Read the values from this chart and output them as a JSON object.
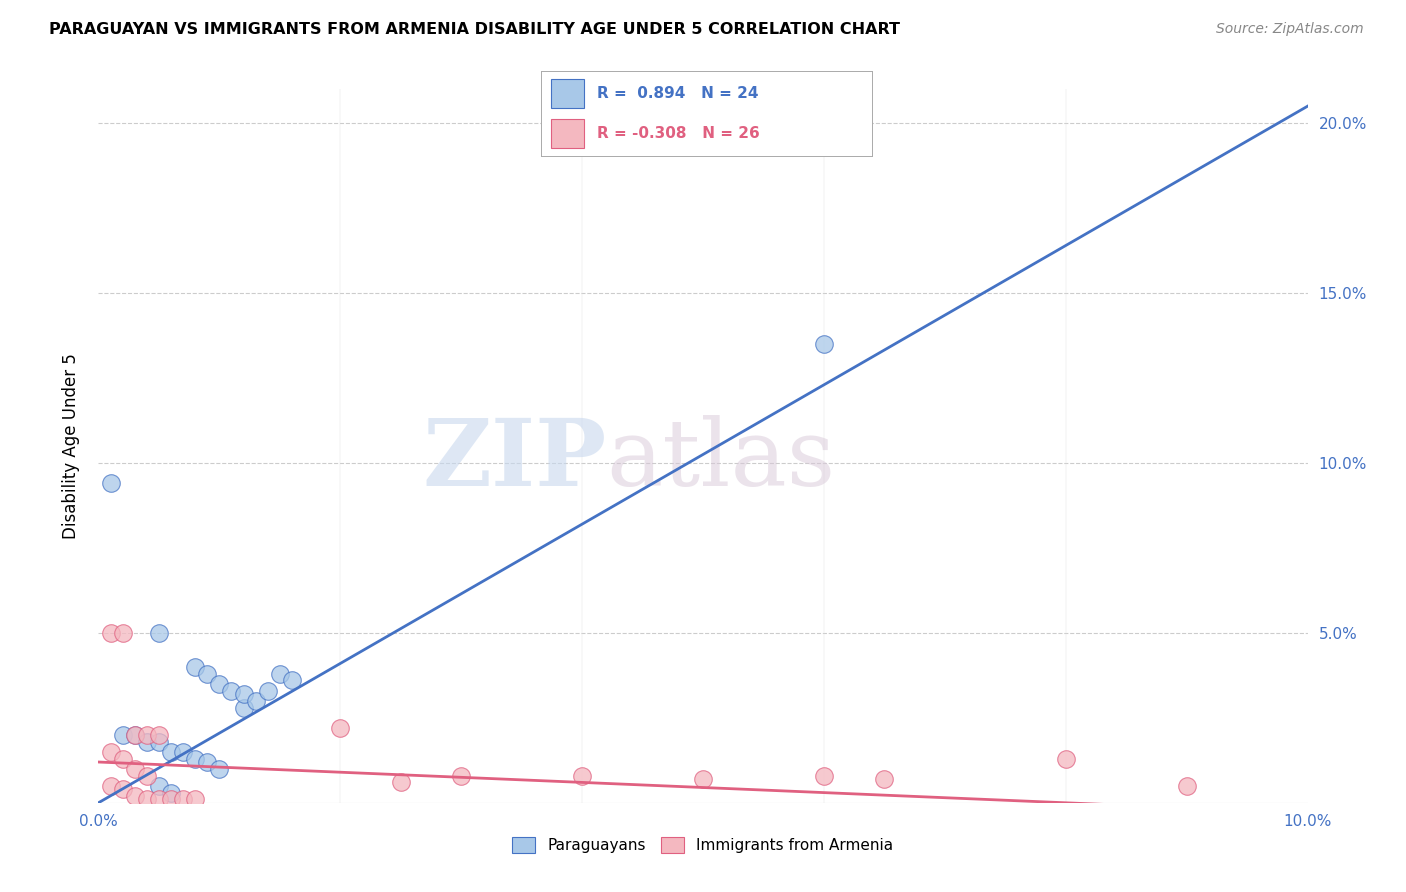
{
  "title": "PARAGUAYAN VS IMMIGRANTS FROM ARMENIA DISABILITY AGE UNDER 5 CORRELATION CHART",
  "source": "Source: ZipAtlas.com",
  "ylabel": "Disability Age Under 5",
  "watermark_zip": "ZIP",
  "watermark_atlas": "atlas",
  "xlim": [
    0.0,
    0.1
  ],
  "ylim": [
    0.0,
    0.21
  ],
  "yticks": [
    0.0,
    0.05,
    0.1,
    0.15,
    0.2
  ],
  "ytick_labels_right": [
    "0.0%",
    "5.0%",
    "10.0%",
    "15.0%",
    "20.0%"
  ],
  "xtick_left_label": "0.0%",
  "xtick_right_label": "10.0%",
  "paraguayan_color": "#a8c8e8",
  "armenian_color": "#f4b8c0",
  "trendline_blue_color": "#4472c4",
  "trendline_pink_color": "#e06080",
  "legend_R_blue": "0.894",
  "legend_N_blue": "24",
  "legend_R_pink": "-0.308",
  "legend_N_pink": "26",
  "trendline_blue_x0": 0.0,
  "trendline_blue_y0": 0.0,
  "trendline_blue_x1": 0.1,
  "trendline_blue_y1": 0.205,
  "trendline_pink_x0": 0.0,
  "trendline_pink_y0": 0.012,
  "trendline_pink_x1": 0.1,
  "trendline_pink_y1": -0.003,
  "paraguayan_points": [
    [
      0.001,
      0.094
    ],
    [
      0.005,
      0.05
    ],
    [
      0.008,
      0.04
    ],
    [
      0.009,
      0.038
    ],
    [
      0.01,
      0.035
    ],
    [
      0.011,
      0.033
    ],
    [
      0.012,
      0.028
    ],
    [
      0.012,
      0.032
    ],
    [
      0.013,
      0.03
    ],
    [
      0.014,
      0.033
    ],
    [
      0.015,
      0.038
    ],
    [
      0.016,
      0.036
    ],
    [
      0.002,
      0.02
    ],
    [
      0.003,
      0.02
    ],
    [
      0.004,
      0.018
    ],
    [
      0.005,
      0.018
    ],
    [
      0.006,
      0.015
    ],
    [
      0.007,
      0.015
    ],
    [
      0.008,
      0.013
    ],
    [
      0.009,
      0.012
    ],
    [
      0.01,
      0.01
    ],
    [
      0.005,
      0.005
    ],
    [
      0.006,
      0.003
    ],
    [
      0.06,
      0.135
    ]
  ],
  "armenian_points": [
    [
      0.001,
      0.05
    ],
    [
      0.002,
      0.05
    ],
    [
      0.003,
      0.02
    ],
    [
      0.004,
      0.02
    ],
    [
      0.005,
      0.02
    ],
    [
      0.001,
      0.015
    ],
    [
      0.002,
      0.013
    ],
    [
      0.003,
      0.01
    ],
    [
      0.004,
      0.008
    ],
    [
      0.001,
      0.005
    ],
    [
      0.002,
      0.004
    ],
    [
      0.003,
      0.002
    ],
    [
      0.004,
      0.001
    ],
    [
      0.005,
      0.001
    ],
    [
      0.006,
      0.001
    ],
    [
      0.007,
      0.001
    ],
    [
      0.008,
      0.001
    ],
    [
      0.02,
      0.022
    ],
    [
      0.025,
      0.006
    ],
    [
      0.03,
      0.008
    ],
    [
      0.04,
      0.008
    ],
    [
      0.05,
      0.007
    ],
    [
      0.06,
      0.008
    ],
    [
      0.065,
      0.007
    ],
    [
      0.08,
      0.013
    ],
    [
      0.09,
      0.005
    ]
  ]
}
